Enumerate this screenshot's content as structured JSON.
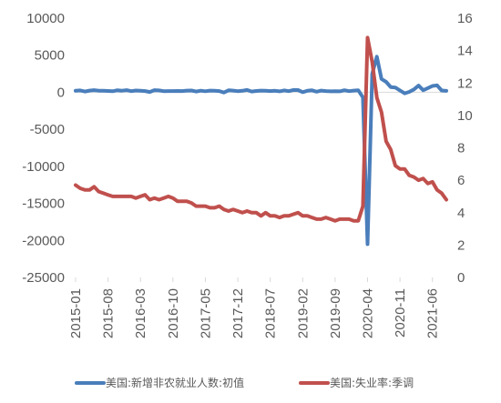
{
  "chart_data": {
    "type": "line",
    "title": "",
    "x_tick_labels": [
      "2015-01",
      "2015-08",
      "2016-03",
      "2016-10",
      "2017-05",
      "2017-12",
      "2018-07",
      "2019-02",
      "2019-09",
      "2020-04",
      "2020-11",
      "2021-06"
    ],
    "x_range": [
      "2015-01",
      "2021-09"
    ],
    "y_left": {
      "range": [
        -25000,
        10000
      ],
      "ticks": [
        10000,
        5000,
        0,
        -5000,
        -10000,
        -15000,
        -20000,
        -25000
      ]
    },
    "y_right": {
      "range": [
        0,
        16
      ],
      "ticks": [
        16,
        14,
        12,
        10,
        8,
        6,
        4,
        2,
        0
      ]
    },
    "grid": false,
    "legend_position": "bottom",
    "series": [
      {
        "name": "美国:新增非农就业人数:初值",
        "axis": "left",
        "color": "#4a7ebb",
        "points": [
          [
            "2015-01",
            200
          ],
          [
            "2015-02",
            250
          ],
          [
            "2015-03",
            100
          ],
          [
            "2015-04",
            220
          ],
          [
            "2015-05",
            280
          ],
          [
            "2015-06",
            210
          ],
          [
            "2015-07",
            200
          ],
          [
            "2015-08",
            170
          ],
          [
            "2015-09",
            140
          ],
          [
            "2015-10",
            270
          ],
          [
            "2015-11",
            210
          ],
          [
            "2015-12",
            290
          ],
          [
            "2016-01",
            150
          ],
          [
            "2016-02",
            240
          ],
          [
            "2016-03",
            210
          ],
          [
            "2016-04",
            160
          ],
          [
            "2016-05",
            40
          ],
          [
            "2016-06",
            290
          ],
          [
            "2016-07",
            250
          ],
          [
            "2016-08",
            150
          ],
          [
            "2016-09",
            160
          ],
          [
            "2016-10",
            160
          ],
          [
            "2016-11",
            180
          ],
          [
            "2016-12",
            160
          ],
          [
            "2017-01",
            230
          ],
          [
            "2017-02",
            240
          ],
          [
            "2017-03",
            100
          ],
          [
            "2017-04",
            210
          ],
          [
            "2017-05",
            140
          ],
          [
            "2017-06",
            220
          ],
          [
            "2017-07",
            210
          ],
          [
            "2017-08",
            160
          ],
          [
            "2017-09",
            -30
          ],
          [
            "2017-10",
            260
          ],
          [
            "2017-11",
            230
          ],
          [
            "2017-12",
            150
          ],
          [
            "2018-01",
            200
          ],
          [
            "2018-02",
            310
          ],
          [
            "2018-03",
            100
          ],
          [
            "2018-04",
            170
          ],
          [
            "2018-05",
            220
          ],
          [
            "2018-06",
            210
          ],
          [
            "2018-07",
            160
          ],
          [
            "2018-08",
            200
          ],
          [
            "2018-09",
            130
          ],
          [
            "2018-10",
            250
          ],
          [
            "2018-11",
            150
          ],
          [
            "2018-12",
            310
          ],
          [
            "2019-01",
            300
          ],
          [
            "2019-02",
            20
          ],
          [
            "2019-03",
            200
          ],
          [
            "2019-04",
            260
          ],
          [
            "2019-05",
            80
          ],
          [
            "2019-06",
            220
          ],
          [
            "2019-07",
            160
          ],
          [
            "2019-08",
            130
          ],
          [
            "2019-09",
            140
          ],
          [
            "2019-10",
            130
          ],
          [
            "2019-11",
            270
          ],
          [
            "2019-12",
            150
          ],
          [
            "2020-01",
            220
          ],
          [
            "2020-02",
            270
          ],
          [
            "2020-03",
            -700
          ],
          [
            "2020-04",
            -20500
          ],
          [
            "2020-05",
            2500
          ],
          [
            "2020-06",
            4800
          ],
          [
            "2020-07",
            1800
          ],
          [
            "2020-08",
            1400
          ],
          [
            "2020-09",
            700
          ],
          [
            "2020-10",
            640
          ],
          [
            "2020-11",
            250
          ],
          [
            "2020-12",
            -140
          ],
          [
            "2021-01",
            50
          ],
          [
            "2021-02",
            380
          ],
          [
            "2021-03",
            900
          ],
          [
            "2021-04",
            270
          ],
          [
            "2021-05",
            560
          ],
          [
            "2021-06",
            850
          ],
          [
            "2021-07",
            940
          ],
          [
            "2021-08",
            240
          ],
          [
            "2021-09",
            190
          ]
        ]
      },
      {
        "name": "美国:失业率:季调",
        "axis": "right",
        "color": "#c0504d",
        "points": [
          [
            "2015-01",
            5.7
          ],
          [
            "2015-02",
            5.5
          ],
          [
            "2015-03",
            5.4
          ],
          [
            "2015-04",
            5.4
          ],
          [
            "2015-05",
            5.6
          ],
          [
            "2015-06",
            5.3
          ],
          [
            "2015-07",
            5.2
          ],
          [
            "2015-08",
            5.1
          ],
          [
            "2015-09",
            5.0
          ],
          [
            "2015-10",
            5.0
          ],
          [
            "2015-11",
            5.0
          ],
          [
            "2015-12",
            5.0
          ],
          [
            "2016-01",
            5.0
          ],
          [
            "2016-02",
            4.9
          ],
          [
            "2016-03",
            5.0
          ],
          [
            "2016-04",
            5.1
          ],
          [
            "2016-05",
            4.8
          ],
          [
            "2016-06",
            4.9
          ],
          [
            "2016-07",
            4.8
          ],
          [
            "2016-08",
            4.9
          ],
          [
            "2016-09",
            5.0
          ],
          [
            "2016-10",
            4.9
          ],
          [
            "2016-11",
            4.7
          ],
          [
            "2016-12",
            4.7
          ],
          [
            "2017-01",
            4.7
          ],
          [
            "2017-02",
            4.6
          ],
          [
            "2017-03",
            4.4
          ],
          [
            "2017-04",
            4.4
          ],
          [
            "2017-05",
            4.4
          ],
          [
            "2017-06",
            4.3
          ],
          [
            "2017-07",
            4.3
          ],
          [
            "2017-08",
            4.4
          ],
          [
            "2017-09",
            4.2
          ],
          [
            "2017-10",
            4.1
          ],
          [
            "2017-11",
            4.2
          ],
          [
            "2017-12",
            4.1
          ],
          [
            "2018-01",
            4.0
          ],
          [
            "2018-02",
            4.1
          ],
          [
            "2018-03",
            4.0
          ],
          [
            "2018-04",
            4.0
          ],
          [
            "2018-05",
            3.8
          ],
          [
            "2018-06",
            4.0
          ],
          [
            "2018-07",
            3.8
          ],
          [
            "2018-08",
            3.8
          ],
          [
            "2018-09",
            3.7
          ],
          [
            "2018-10",
            3.8
          ],
          [
            "2018-11",
            3.8
          ],
          [
            "2018-12",
            3.9
          ],
          [
            "2019-01",
            4.0
          ],
          [
            "2019-02",
            3.8
          ],
          [
            "2019-03",
            3.8
          ],
          [
            "2019-04",
            3.7
          ],
          [
            "2019-05",
            3.6
          ],
          [
            "2019-06",
            3.6
          ],
          [
            "2019-07",
            3.7
          ],
          [
            "2019-08",
            3.6
          ],
          [
            "2019-09",
            3.5
          ],
          [
            "2019-10",
            3.6
          ],
          [
            "2019-11",
            3.6
          ],
          [
            "2019-12",
            3.6
          ],
          [
            "2020-01",
            3.5
          ],
          [
            "2020-02",
            3.5
          ],
          [
            "2020-03",
            4.4
          ],
          [
            "2020-04",
            14.8
          ],
          [
            "2020-05",
            13.3
          ],
          [
            "2020-06",
            11.1
          ],
          [
            "2020-07",
            10.2
          ],
          [
            "2020-08",
            8.4
          ],
          [
            "2020-09",
            7.9
          ],
          [
            "2020-10",
            6.9
          ],
          [
            "2020-11",
            6.7
          ],
          [
            "2020-12",
            6.7
          ],
          [
            "2021-01",
            6.3
          ],
          [
            "2021-02",
            6.2
          ],
          [
            "2021-03",
            6.0
          ],
          [
            "2021-04",
            6.1
          ],
          [
            "2021-05",
            5.8
          ],
          [
            "2021-06",
            5.9
          ],
          [
            "2021-07",
            5.4
          ],
          [
            "2021-08",
            5.2
          ],
          [
            "2021-09",
            4.8
          ]
        ]
      }
    ]
  }
}
